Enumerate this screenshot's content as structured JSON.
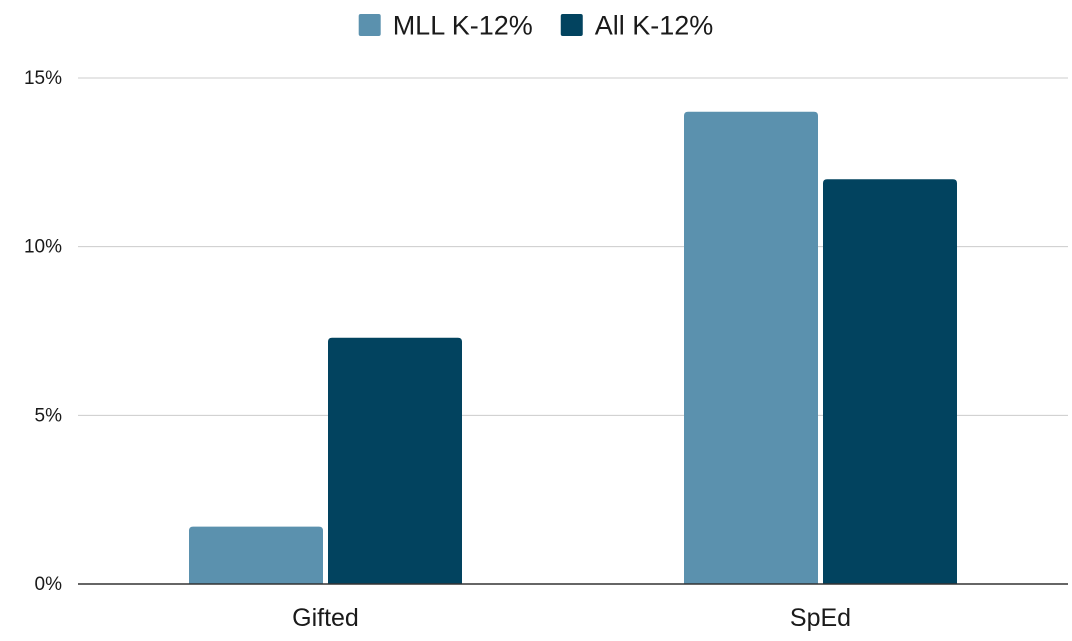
{
  "chart_data": {
    "type": "bar",
    "categories": [
      "Gifted",
      "SpEd"
    ],
    "series": [
      {
        "name": "MLL K-12%",
        "values": [
          1.7,
          14.0
        ],
        "color": "#5b91ae"
      },
      {
        "name": "All K-12%",
        "values": [
          7.3,
          12.0
        ],
        "color": "#02435f"
      }
    ],
    "ylim": [
      0,
      15
    ],
    "yticks": [
      0,
      5,
      10,
      15
    ],
    "ytick_labels": [
      "0%",
      "5%",
      "10%",
      "15%"
    ],
    "title": "",
    "xlabel": "",
    "ylabel": "",
    "grid": true,
    "legend_position": "top-center",
    "axis_color": "#333333",
    "grid_color": "#cccccc",
    "text_color": "#1a1a1a"
  }
}
